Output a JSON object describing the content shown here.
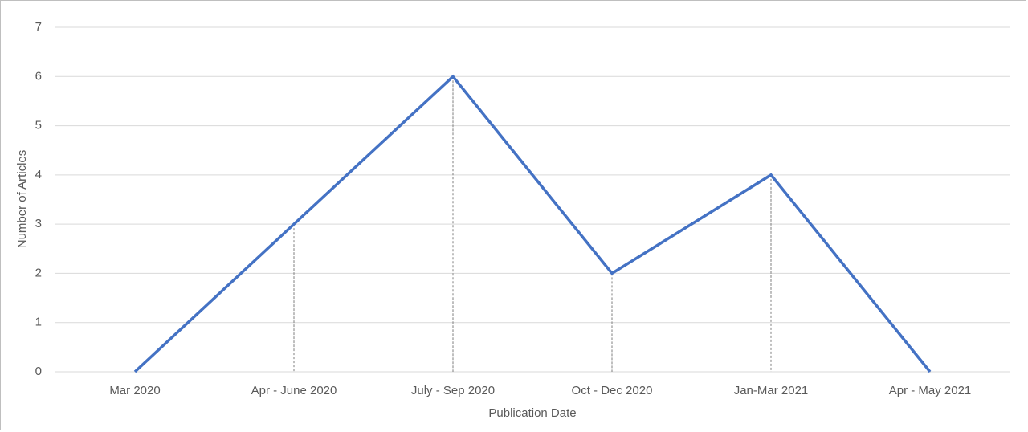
{
  "chart_data": {
    "type": "line",
    "x_label": "Publication Date",
    "y_label": "Number of Articles",
    "categories": [
      "Mar 2020",
      "Apr - June 2020",
      "July - Sep 2020",
      "Oct - Dec 2020",
      "Jan-Mar 2021",
      "Apr - May 2021"
    ],
    "values": [
      0,
      3,
      6,
      2,
      4,
      0
    ],
    "color": "#4472c4",
    "ylim": [
      0,
      7
    ],
    "yticks": [
      0,
      1,
      2,
      3,
      4,
      5,
      6,
      7
    ],
    "grid": true,
    "drop_lines": true
  }
}
